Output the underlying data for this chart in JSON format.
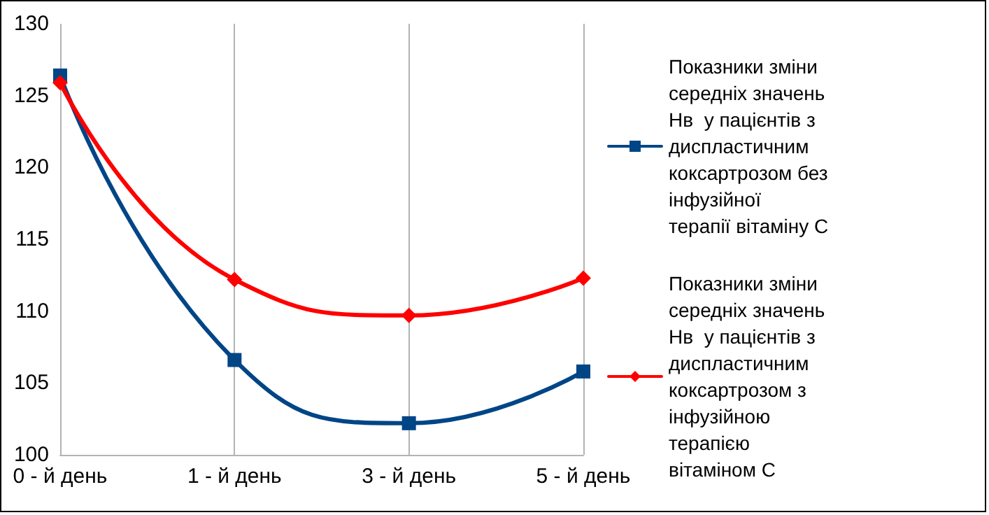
{
  "chart_data": {
    "type": "line",
    "categories": [
      "0 - й день",
      "1 - й день",
      "3 - й день",
      "5 - й день"
    ],
    "series": [
      {
        "name": "Показники зміни середніх значень Нв  у пацієнтів з диспластичним коксартрозом без інфузійної терапії вітаміну С",
        "color": "#004586",
        "values": [
          126.4,
          106.6,
          102.2,
          105.8
        ],
        "marker": "square"
      },
      {
        "name": "Показники зміни середніх значень Нв  у пацієнтів з диспластичним коксартрозом з інфузійною терапією вітаміном С",
        "color": "#ff0000",
        "values": [
          125.9,
          112.2,
          109.7,
          112.3
        ],
        "marker": "diamond"
      }
    ],
    "ylim": [
      100,
      130
    ],
    "yticks": [
      100,
      105,
      110,
      115,
      120,
      125,
      130
    ],
    "grid": "x",
    "legend": "right",
    "line_style": "solid"
  }
}
